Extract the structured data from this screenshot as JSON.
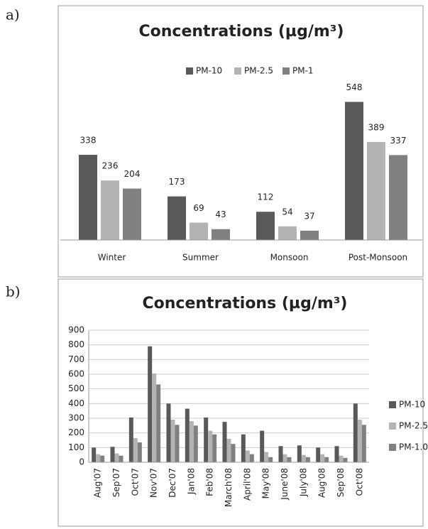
{
  "panels": [
    "a)",
    "b)"
  ],
  "chart_data": [
    {
      "type": "bar",
      "title": "Concentrations (µg/m³)",
      "categories": [
        "Winter",
        "Summer",
        "Monsoon",
        "Post-Monsoon"
      ],
      "series": [
        {
          "name": "PM-10",
          "color": "#595959",
          "values": [
            338,
            173,
            112,
            548
          ]
        },
        {
          "name": "PM-2.5",
          "color": "#b3b3b3",
          "values": [
            236,
            69,
            54,
            389
          ]
        },
        {
          "name": "PM-1",
          "color": "#808080",
          "values": [
            204,
            43,
            37,
            337
          ]
        }
      ],
      "ylim": [
        0,
        600
      ],
      "legend": "top",
      "grid": false
    },
    {
      "type": "bar",
      "title": "Concentrations (µg/m³)",
      "categories": [
        "Aug'07",
        "Sep'07",
        "Oct'07",
        "Nov'07",
        "Dec'07",
        "Jan'08",
        "Feb'08",
        "March'08",
        "April'08",
        "May'08",
        "June'08",
        "July'08",
        "Aug'08",
        "Sep'08",
        "Oct'08"
      ],
      "series": [
        {
          "name": "PM-10",
          "color": "#595959",
          "values": [
            100,
            105,
            305,
            790,
            400,
            365,
            305,
            275,
            190,
            215,
            110,
            115,
            100,
            110,
            400
          ]
        },
        {
          "name": "PM-2.5",
          "color": "#b3b3b3",
          "values": [
            55,
            60,
            165,
            605,
            290,
            280,
            215,
            160,
            80,
            70,
            55,
            50,
            55,
            45,
            290
          ]
        },
        {
          "name": "PM-1.0",
          "color": "#808080",
          "values": [
            45,
            45,
            135,
            530,
            255,
            250,
            190,
            125,
            55,
            35,
            35,
            35,
            35,
            30,
            255
          ]
        }
      ],
      "ylim": [
        0,
        900
      ],
      "yticks": [
        0,
        100,
        200,
        300,
        400,
        500,
        600,
        700,
        800,
        900
      ],
      "legend": "right",
      "grid": true
    }
  ]
}
